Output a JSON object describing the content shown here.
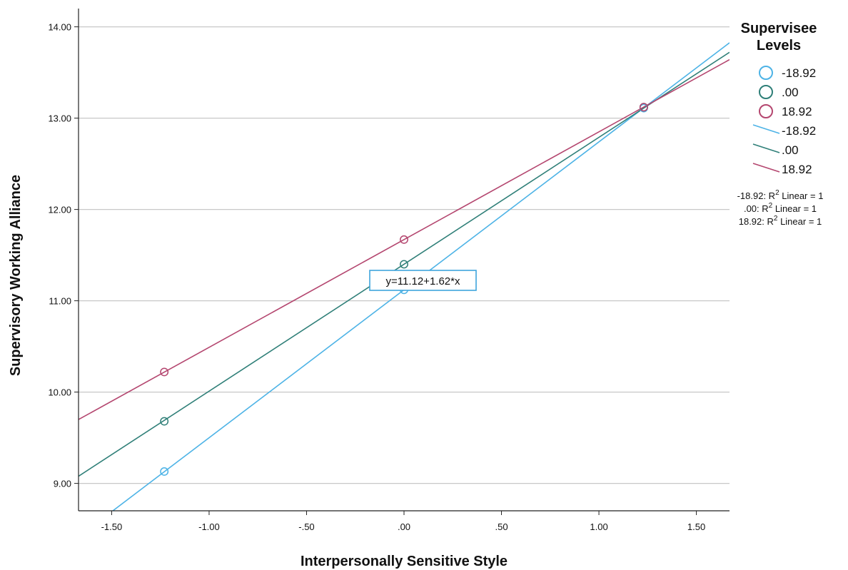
{
  "chart_data": {
    "type": "line",
    "xlabel": "Interpersonally Sensitive Style",
    "ylabel": "Supervisory Working Alliance",
    "xlim": [
      -1.67,
      1.67
    ],
    "ylim": [
      8.7,
      14.2
    ],
    "x_ticks": [
      {
        "value": -1.5,
        "label": "-1.50"
      },
      {
        "value": -1.0,
        "label": "-1.00"
      },
      {
        "value": -0.5,
        "label": "-.50"
      },
      {
        "value": 0.0,
        "label": ".00"
      },
      {
        "value": 0.5,
        "label": ".50"
      },
      {
        "value": 1.0,
        "label": "1.00"
      },
      {
        "value": 1.5,
        "label": "1.50"
      }
    ],
    "y_ticks": [
      {
        "value": 9,
        "label": "9.00"
      },
      {
        "value": 10,
        "label": "10.00"
      },
      {
        "value": 11,
        "label": "11.00"
      },
      {
        "value": 12,
        "label": "12.00"
      },
      {
        "value": 13,
        "label": "13.00"
      },
      {
        "value": 14,
        "label": "14.00"
      }
    ],
    "grid": "horizontal",
    "legend": {
      "title": [
        "Supervisee",
        "Levels"
      ],
      "placement": "right",
      "marker_entries": [
        "-18.92",
        ".00",
        "18.92"
      ],
      "line_entries": [
        "-18.92",
        ".00",
        "18.92"
      ],
      "r2_entries": [
        {
          "prefix": "-18.92: R",
          "sup": "2",
          "suffix": " Linear = 1"
        },
        {
          "prefix": ".00: R",
          "sup": "2",
          "suffix": " Linear = 1"
        },
        {
          "prefix": "18.92: R",
          "sup": "2",
          "suffix": " Linear = 1"
        }
      ]
    },
    "series": [
      {
        "name": "-18.92",
        "color": "#4db3e6",
        "intercept": 11.12,
        "slope": 1.62,
        "points": [
          {
            "x": -1.23,
            "y": 9.13
          },
          {
            "x": 0.0,
            "y": 11.12
          },
          {
            "x": 1.23,
            "y": 13.11
          }
        ]
      },
      {
        "name": ".00",
        "color": "#2f7f78",
        "intercept": 11.4,
        "slope": 1.39,
        "points": [
          {
            "x": -1.23,
            "y": 9.68
          },
          {
            "x": 0.0,
            "y": 11.4
          },
          {
            "x": 1.23,
            "y": 13.12
          }
        ]
      },
      {
        "name": "18.92",
        "color": "#b4466f",
        "intercept": 11.67,
        "slope": 1.18,
        "points": [
          {
            "x": -1.23,
            "y": 10.22
          },
          {
            "x": 0.0,
            "y": 11.67
          },
          {
            "x": 1.23,
            "y": 13.12
          }
        ]
      }
    ],
    "annotation": {
      "text": "y=11.12+1.62*x",
      "series": "-18.92",
      "anchor_x": 0.0
    }
  }
}
